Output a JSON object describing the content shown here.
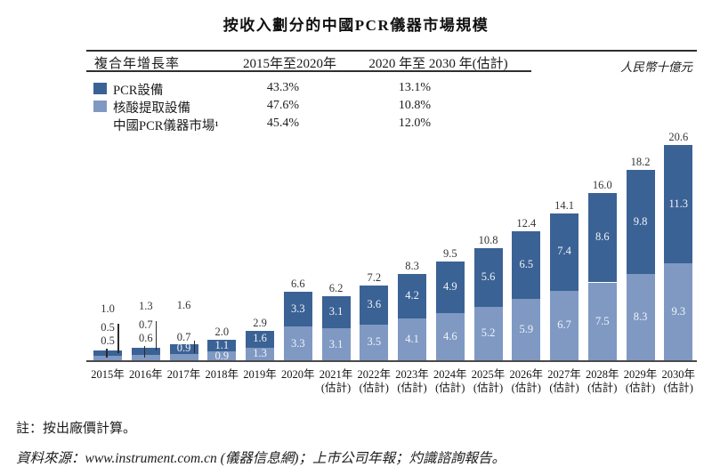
{
  "title": "按收入劃分的中國PCR儀器市場規模",
  "cagr_table": {
    "row_header": "複合年增長率",
    "col1_header": "2015年至2020年",
    "col2_header": "2020 年至 2030 年(估計)",
    "unit_note": "人民幣十億元",
    "rows": [
      {
        "swatch": "dark-blue",
        "label": "PCR設備",
        "v1": "43.3%",
        "v2": "13.1%"
      },
      {
        "swatch": "light-blue",
        "label": "核酸提取設備",
        "v1": "47.6%",
        "v2": "10.8%"
      },
      {
        "swatch": "none",
        "label": "中國PCR儀器市場¹",
        "v1": "45.4%",
        "v2": "12.0%"
      }
    ]
  },
  "chart_data": {
    "type": "bar",
    "stacked": true,
    "title": "按收入劃分的中國PCR儀器市場規模",
    "ylabel": "人民幣十億元",
    "ylim": [
      0,
      21.5
    ],
    "grid": false,
    "legend_position": "top-left-table",
    "categories": [
      "2015年",
      "2016年",
      "2017年",
      "2018年",
      "2019年",
      "2020年",
      "2021年",
      "2022年",
      "2023年",
      "2024年",
      "2025年",
      "2026年",
      "2027年",
      "2028年",
      "2029年",
      "2030年"
    ],
    "estimate_note": "(估計)",
    "estimate_from_index": 6,
    "series": [
      {
        "name": "PCR設備",
        "color": "#3B6295",
        "values": [
          0.5,
          0.7,
          0.9,
          1.1,
          1.6,
          3.3,
          3.1,
          3.6,
          4.2,
          4.9,
          5.6,
          6.5,
          7.4,
          8.6,
          9.8,
          11.3
        ]
      },
      {
        "name": "核酸提取設備",
        "color": "#7F99C3",
        "values": [
          0.5,
          0.6,
          0.7,
          0.9,
          1.3,
          3.3,
          3.1,
          3.5,
          4.1,
          4.6,
          5.2,
          5.9,
          6.7,
          7.5,
          8.3,
          9.3
        ]
      }
    ],
    "totals": [
      1.0,
      1.3,
      1.6,
      2.0,
      2.9,
      6.6,
      6.2,
      7.2,
      8.3,
      9.5,
      10.8,
      12.4,
      14.1,
      16.0,
      18.2,
      20.6
    ]
  },
  "footnotes": {
    "note": "註：按出廠價計算。",
    "source": "資料來源：www.instrument.com.cn (儀器信息網)；上市公司年報；灼識諮詢報告。"
  }
}
